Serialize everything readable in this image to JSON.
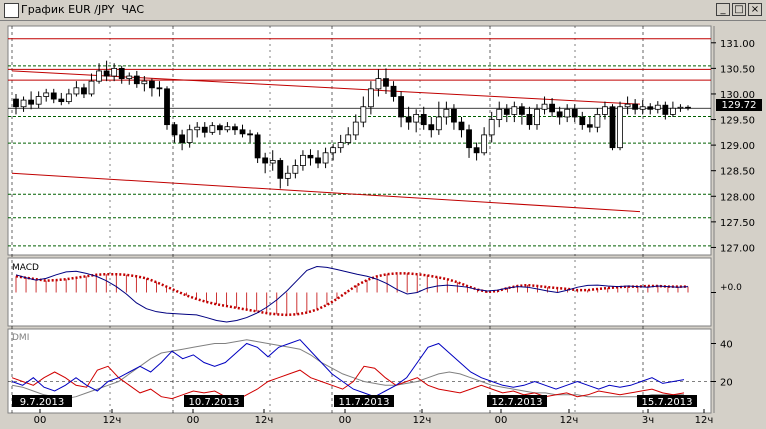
{
  "window": {
    "title": "График EUR /JPY  ЧАС",
    "minimize_glyph": "_",
    "maximize_glyph": "□",
    "close_glyph": "×"
  },
  "colors": {
    "bg": "#ffffff",
    "frame": "#d4d0c8",
    "candle": "#000000",
    "trendline": "#c00000",
    "hline_red": "#c00000",
    "hline_green": "#006000",
    "macd_signal": "#c00000",
    "macd_line": "#000080",
    "dmi_plus": "#0000c0",
    "dmi_minus": "#d00000",
    "adx": "#808080"
  },
  "chart_data": [
    {
      "type": "candlestick",
      "price_axis_ticks": [
        "131.00",
        "130.50",
        "130.00",
        "129.50",
        "129.00",
        "128.50",
        "128.00",
        "127.50",
        "127.00"
      ],
      "current_price": "129.72",
      "ylim": [
        126.95,
        131.25
      ],
      "horizontal_lines_red": [
        131.08,
        130.48,
        130.27
      ],
      "horizontal_lines_green": [
        130.55,
        129.56,
        129.04,
        128.04,
        127.58,
        127.03
      ],
      "current_price_line": 129.72,
      "trend_lines": [
        {
          "from": [
            0,
            130.45
          ],
          "to": [
            160,
            129.8
          ]
        },
        {
          "from": [
            0,
            128.45
          ],
          "to": [
            160,
            127.7
          ]
        }
      ],
      "candles": [
        [
          129.9,
          129.75,
          130.0,
          129.6
        ],
        [
          129.75,
          129.88,
          129.95,
          129.65
        ],
        [
          129.88,
          129.8,
          130.05,
          129.7
        ],
        [
          129.8,
          129.95,
          130.05,
          129.72
        ],
        [
          129.95,
          130.02,
          130.1,
          129.85
        ],
        [
          130.02,
          129.9,
          130.1,
          129.82
        ],
        [
          129.9,
          129.85,
          130.02,
          129.78
        ],
        [
          129.85,
          130.0,
          130.1,
          129.8
        ],
        [
          130.0,
          130.12,
          130.25,
          129.95
        ],
        [
          130.12,
          130.0,
          130.2,
          129.92
        ],
        [
          130.0,
          130.25,
          130.4,
          129.95
        ],
        [
          130.25,
          130.45,
          130.6,
          130.2
        ],
        [
          130.45,
          130.35,
          130.65,
          130.25
        ],
        [
          130.35,
          130.5,
          130.6,
          130.25
        ],
        [
          130.5,
          130.3,
          130.55,
          130.2
        ],
        [
          130.3,
          130.35,
          130.42,
          130.18
        ],
        [
          130.35,
          130.2,
          130.45,
          130.12
        ],
        [
          130.2,
          130.25,
          130.35,
          130.05
        ],
        [
          130.25,
          130.12,
          130.3,
          129.95
        ],
        [
          130.12,
          130.1,
          130.25,
          129.95
        ],
        [
          130.1,
          129.4,
          130.15,
          129.3
        ],
        [
          129.4,
          129.2,
          129.45,
          129.05
        ],
        [
          129.2,
          129.05,
          129.3,
          128.9
        ],
        [
          129.05,
          129.3,
          129.4,
          128.95
        ],
        [
          129.3,
          129.35,
          129.45,
          129.15
        ],
        [
          129.35,
          129.25,
          129.45,
          129.15
        ],
        [
          129.25,
          129.38,
          129.45,
          129.2
        ],
        [
          129.38,
          129.3,
          129.42,
          129.2
        ],
        [
          129.3,
          129.36,
          129.45,
          129.25
        ],
        [
          129.36,
          129.3,
          129.42,
          129.2
        ],
        [
          129.3,
          129.22,
          129.4,
          129.15
        ],
        [
          129.22,
          129.2,
          129.3,
          129.05
        ],
        [
          129.2,
          128.75,
          129.25,
          128.65
        ],
        [
          128.75,
          128.65,
          128.85,
          128.45
        ],
        [
          128.65,
          128.7,
          128.9,
          128.5
        ],
        [
          128.7,
          128.35,
          128.75,
          128.15
        ],
        [
          128.35,
          128.45,
          128.6,
          128.2
        ],
        [
          128.45,
          128.6,
          128.72,
          128.35
        ],
        [
          128.6,
          128.8,
          128.9,
          128.5
        ],
        [
          128.8,
          128.75,
          128.92,
          128.6
        ],
        [
          128.75,
          128.65,
          128.9,
          128.55
        ],
        [
          128.65,
          128.85,
          128.95,
          128.55
        ],
        [
          128.85,
          128.95,
          129.02,
          128.7
        ],
        [
          128.95,
          129.05,
          129.2,
          128.85
        ],
        [
          129.05,
          129.2,
          129.35,
          129.0
        ],
        [
          129.2,
          129.45,
          129.6,
          129.1
        ],
        [
          129.45,
          129.75,
          129.95,
          129.35
        ],
        [
          129.75,
          130.1,
          130.25,
          129.6
        ],
        [
          130.1,
          130.3,
          130.48,
          129.95
        ],
        [
          130.3,
          130.15,
          130.5,
          130.0
        ],
        [
          130.15,
          129.95,
          130.25,
          129.85
        ],
        [
          129.95,
          129.55,
          130.05,
          129.35
        ],
        [
          129.55,
          129.45,
          129.75,
          129.3
        ],
        [
          129.45,
          129.6,
          129.7,
          129.25
        ],
        [
          129.6,
          129.4,
          129.75,
          129.3
        ],
        [
          129.4,
          129.3,
          129.55,
          129.15
        ],
        [
          129.3,
          129.55,
          129.85,
          129.2
        ],
        [
          129.55,
          129.7,
          129.85,
          129.4
        ],
        [
          129.7,
          129.45,
          129.8,
          129.3
        ],
        [
          129.45,
          129.3,
          129.55,
          129.15
        ],
        [
          129.3,
          128.95,
          129.4,
          128.75
        ],
        [
          128.95,
          128.85,
          129.05,
          128.7
        ],
        [
          128.85,
          129.2,
          129.35,
          128.8
        ],
        [
          129.2,
          129.5,
          129.65,
          129.05
        ],
        [
          129.5,
          129.7,
          129.85,
          129.35
        ],
        [
          129.7,
          129.6,
          129.8,
          129.45
        ],
        [
          129.6,
          129.75,
          129.85,
          129.45
        ],
        [
          129.75,
          129.6,
          129.82,
          129.4
        ],
        [
          129.6,
          129.4,
          129.75,
          129.3
        ],
        [
          129.4,
          129.7,
          129.8,
          129.3
        ],
        [
          129.7,
          129.8,
          129.95,
          129.6
        ],
        [
          129.8,
          129.65,
          129.92,
          129.55
        ],
        [
          129.65,
          129.55,
          129.75,
          129.4
        ],
        [
          129.55,
          129.7,
          129.8,
          129.45
        ],
        [
          129.7,
          129.55,
          129.8,
          129.45
        ],
        [
          129.55,
          129.4,
          129.65,
          129.3
        ],
        [
          129.4,
          129.35,
          129.55,
          129.25
        ],
        [
          129.35,
          129.6,
          129.72,
          129.25
        ],
        [
          129.6,
          129.75,
          129.85,
          129.5
        ],
        [
          129.75,
          128.95,
          129.8,
          128.9
        ],
        [
          128.95,
          129.75,
          129.85,
          128.9
        ],
        [
          129.75,
          129.8,
          129.95,
          129.6
        ],
        [
          129.8,
          129.7,
          129.9,
          129.6
        ],
        [
          129.7,
          129.75,
          129.88,
          129.6
        ],
        [
          129.75,
          129.7,
          129.82,
          129.6
        ],
        [
          129.7,
          129.78,
          129.86,
          129.62
        ],
        [
          129.78,
          129.6,
          129.85,
          129.5
        ],
        [
          129.6,
          129.72,
          129.85,
          129.55
        ],
        [
          129.72,
          129.74,
          129.8,
          129.65
        ],
        [
          129.74,
          129.72,
          129.78,
          129.68
        ]
      ]
    },
    {
      "type": "line",
      "title": "MACD",
      "zero_label": "+0.0",
      "ylim": [
        -1,
        1
      ],
      "signal": [
        0.55,
        0.5,
        0.45,
        0.4,
        0.42,
        0.45,
        0.5,
        0.55,
        0.6,
        0.62,
        0.62,
        0.6,
        0.55,
        0.48,
        0.35,
        0.2,
        0.05,
        -0.1,
        -0.22,
        -0.32,
        -0.4,
        -0.46,
        -0.52,
        -0.58,
        -0.64,
        -0.7,
        -0.74,
        -0.76,
        -0.74,
        -0.68,
        -0.58,
        -0.42,
        -0.22,
        0.02,
        0.25,
        0.42,
        0.55,
        0.62,
        0.65,
        0.65,
        0.62,
        0.58,
        0.52,
        0.45,
        0.35,
        0.22,
        0.1,
        0.02,
        0.05,
        0.15,
        0.22,
        0.25,
        0.22,
        0.18,
        0.15,
        0.12,
        0.08,
        0.08,
        0.12,
        0.15,
        0.18,
        0.2,
        0.2,
        0.22,
        0.22,
        0.2,
        0.2,
        0.2
      ],
      "macd": [
        0.6,
        0.5,
        0.42,
        0.48,
        0.6,
        0.7,
        0.72,
        0.65,
        0.55,
        0.4,
        0.2,
        -0.05,
        -0.35,
        -0.55,
        -0.65,
        -0.7,
        -0.72,
        -0.74,
        -0.76,
        -0.85,
        -0.95,
        -1.0,
        -0.95,
        -0.85,
        -0.7,
        -0.5,
        -0.25,
        0.05,
        0.4,
        0.75,
        0.88,
        0.85,
        0.78,
        0.7,
        0.62,
        0.55,
        0.45,
        0.3,
        0.1,
        -0.05,
        0.0,
        0.15,
        0.22,
        0.25,
        0.22,
        0.18,
        0.1,
        0.05,
        0.08,
        0.15,
        0.2,
        0.18,
        0.12,
        0.05,
        0.0,
        0.08,
        0.18,
        0.24,
        0.25,
        0.22,
        0.2,
        0.22,
        0.2,
        0.18,
        0.22,
        0.2,
        0.18,
        0.2
      ]
    },
    {
      "type": "line",
      "title": "DMI",
      "ytick_labels": [
        "40",
        "20"
      ],
      "ylim": [
        5,
        45
      ],
      "dmi_plus": [
        20,
        18,
        22,
        17,
        15,
        18,
        22,
        18,
        15,
        20,
        22,
        25,
        28,
        25,
        30,
        36,
        32,
        34,
        30,
        28,
        30,
        35,
        40,
        38,
        33,
        38,
        40,
        42,
        36,
        30,
        24,
        20,
        16,
        14,
        12,
        15,
        18,
        22,
        30,
        38,
        40,
        35,
        30,
        25,
        22,
        20,
        18,
        17,
        18,
        20,
        18,
        16,
        18,
        20,
        18,
        16,
        18,
        17,
        18,
        20,
        22,
        19,
        20,
        21
      ],
      "dmi_minus": [
        22,
        20,
        18,
        22,
        25,
        22,
        18,
        17,
        26,
        28,
        22,
        18,
        14,
        16,
        12,
        11,
        13,
        15,
        14,
        15,
        12,
        10,
        13,
        16,
        20,
        22,
        24,
        26,
        22,
        20,
        18,
        16,
        20,
        28,
        27,
        22,
        18,
        20,
        22,
        18,
        16,
        15,
        14,
        16,
        18,
        16,
        14,
        15,
        13,
        14,
        12,
        13,
        14,
        12,
        13,
        15,
        14,
        13,
        14,
        15,
        16,
        14,
        13,
        14
      ],
      "adx": [
        18,
        17,
        15,
        13,
        12,
        11,
        12,
        14,
        16,
        18,
        20,
        24,
        28,
        32,
        35,
        36,
        37,
        38,
        39,
        40,
        40,
        41,
        42,
        41,
        40,
        39,
        38,
        37,
        34,
        30,
        27,
        24,
        22,
        20,
        19,
        18,
        18,
        19,
        20,
        22,
        24,
        25,
        24,
        22,
        20,
        18,
        17,
        16,
        15,
        14,
        14,
        13,
        13,
        13,
        12,
        12,
        12,
        12,
        12,
        12,
        13,
        13,
        13,
        13
      ]
    }
  ],
  "time_axis": {
    "date_labels": [
      "9.7.2013",
      "10.7.2013",
      "11.7.2013",
      "12.7.2013",
      "15.7.2013"
    ],
    "hour_labels": [
      "00",
      "12ч",
      "00",
      "12ч",
      "00",
      "12ч",
      "00",
      "12ч",
      "3ч",
      "12ч"
    ]
  }
}
